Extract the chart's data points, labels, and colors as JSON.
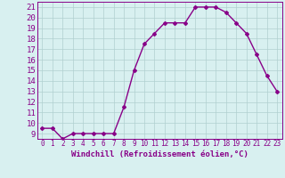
{
  "hours": [
    0,
    1,
    2,
    3,
    4,
    5,
    6,
    7,
    8,
    9,
    10,
    11,
    12,
    13,
    14,
    15,
    16,
    17,
    18,
    19,
    20,
    21,
    22,
    23
  ],
  "values": [
    9.5,
    9.5,
    8.5,
    9.0,
    9.0,
    9.0,
    9.0,
    9.0,
    11.5,
    15.0,
    17.5,
    18.5,
    19.5,
    19.5,
    19.5,
    21.0,
    21.0,
    21.0,
    20.5,
    19.5,
    18.5,
    16.5,
    14.5,
    13.0
  ],
  "line_color": "#880088",
  "marker": "D",
  "marker_size": 2.0,
  "bg_color": "#d8f0f0",
  "grid_color": "#b0d0d0",
  "xlabel": "Windchill (Refroidissement éolien,°C)",
  "xlim": [
    -0.5,
    23.5
  ],
  "ylim": [
    8.5,
    21.5
  ],
  "yticks": [
    9,
    10,
    11,
    12,
    13,
    14,
    15,
    16,
    17,
    18,
    19,
    20,
    21
  ],
  "xtick_labels": [
    "0",
    "1",
    "2",
    "3",
    "4",
    "5",
    "6",
    "7",
    "8",
    "9",
    "10",
    "11",
    "12",
    "13",
    "14",
    "15",
    "16",
    "17",
    "18",
    "19",
    "20",
    "21",
    "22",
    "23"
  ],
  "xlabel_fontsize": 6.5,
  "ytick_fontsize": 6.5,
  "xtick_fontsize": 5.5,
  "linewidth": 1.0
}
